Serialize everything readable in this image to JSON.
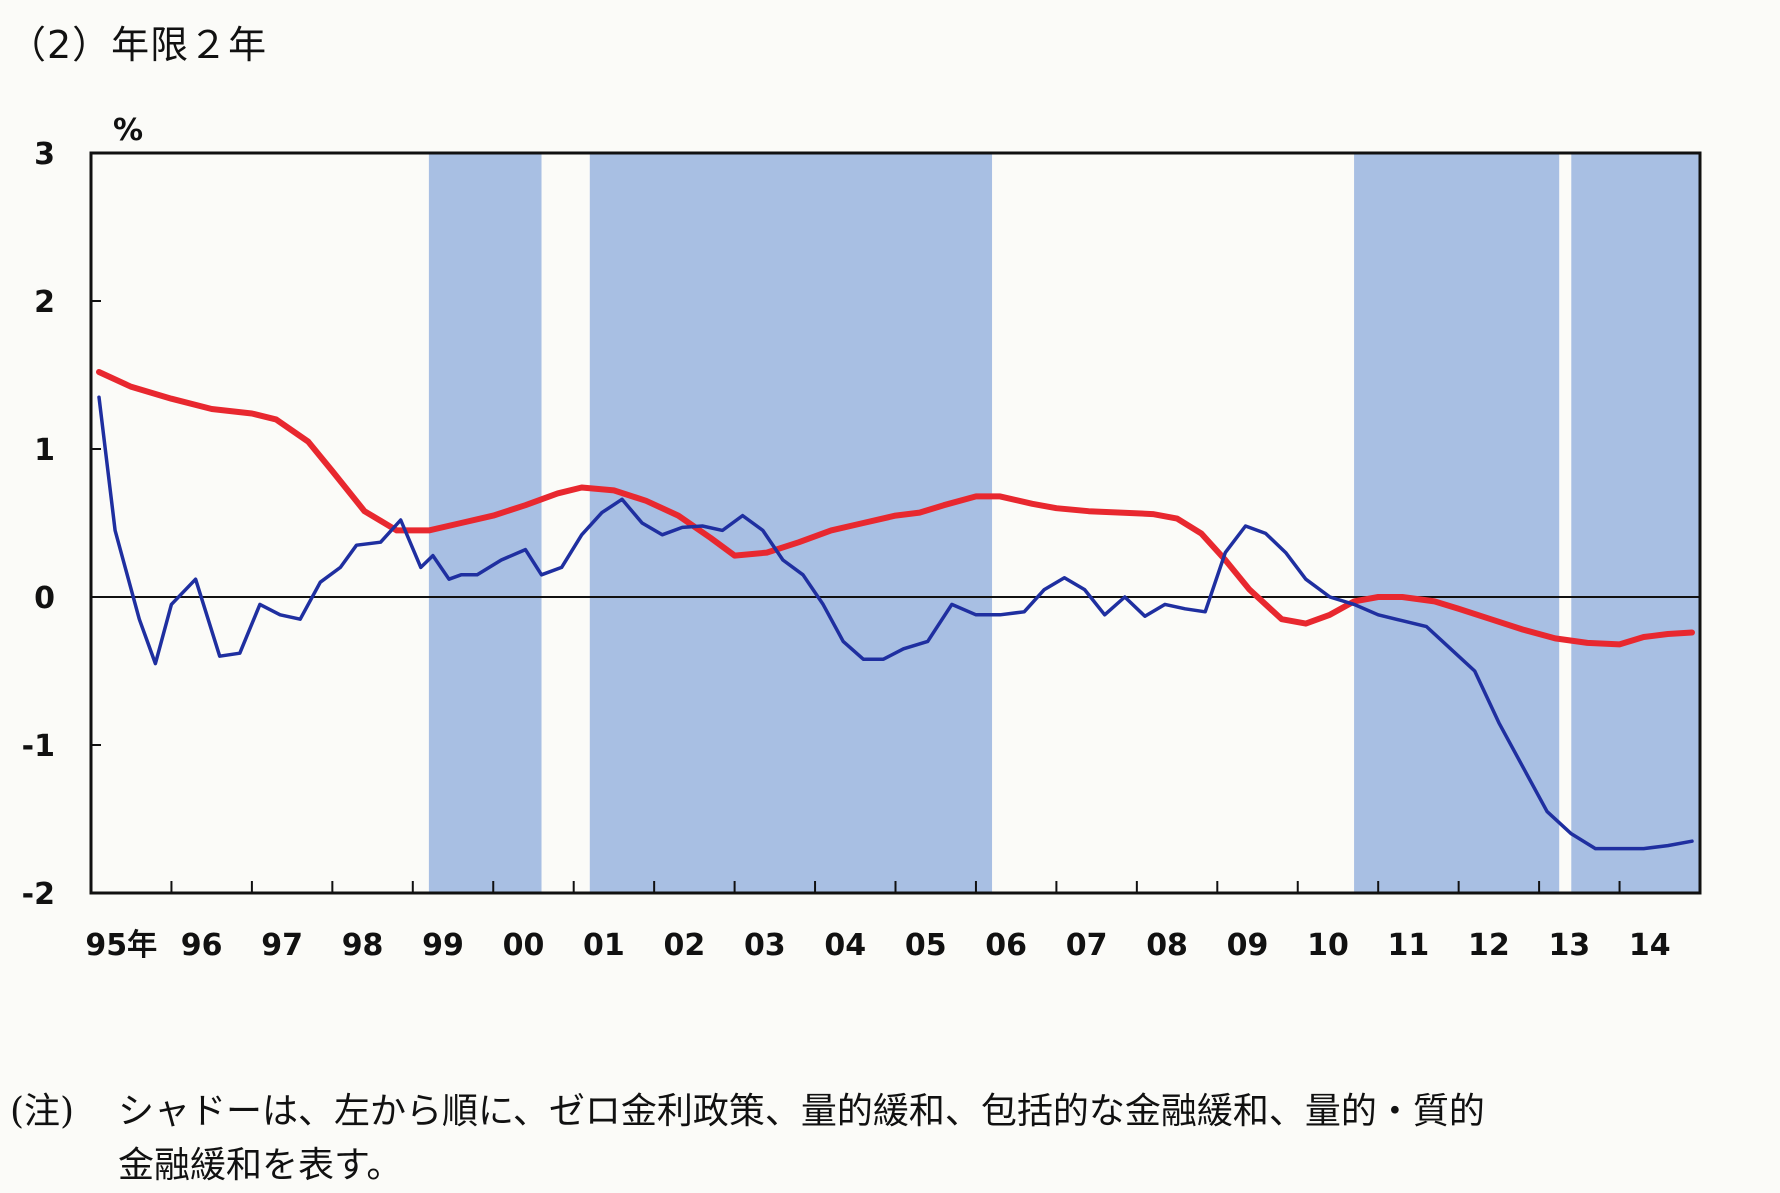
{
  "title": "（2）年限２年",
  "note": {
    "label": "(注)",
    "line1": "シャドーは、左から順に、ゼロ金利政策、量的緩和、包括的な金融緩和、量的・質的",
    "line2": "金融緩和を表す。"
  },
  "colors": {
    "shade": "#a8bfe3",
    "red_series": "#e8282f",
    "blue_series": "#1f2fa0",
    "zero_line": "#111111"
  },
  "chart_data": {
    "type": "line",
    "y_unit": "%",
    "ylim": [
      -2,
      3
    ],
    "yticks": [
      3,
      2,
      1,
      0,
      -1,
      -2
    ],
    "xlim": [
      1995,
      2015
    ],
    "xtick_labels": [
      "95年",
      "96",
      "97",
      "98",
      "99",
      "00",
      "01",
      "02",
      "03",
      "04",
      "05",
      "06",
      "07",
      "08",
      "09",
      "10",
      "11",
      "12",
      "13",
      "14"
    ],
    "shaded_periods": [
      [
        1999.2,
        2000.6
      ],
      [
        2001.2,
        2006.2
      ],
      [
        2010.7,
        2013.25
      ],
      [
        2013.4,
        2015.0
      ]
    ],
    "series": [
      {
        "color": "red",
        "x": [
          1995.1,
          1995.5,
          1996.0,
          1996.5,
          1997.0,
          1997.3,
          1997.7,
          1998.0,
          1998.4,
          1998.8,
          1999.2,
          1999.6,
          2000.0,
          2000.4,
          2000.8,
          2001.1,
          2001.5,
          2001.9,
          2002.3,
          2002.7,
          2003.0,
          2003.4,
          2003.8,
          2004.2,
          2004.6,
          2005.0,
          2005.3,
          2005.6,
          2006.0,
          2006.3,
          2006.7,
          2007.0,
          2007.4,
          2007.8,
          2008.2,
          2008.5,
          2008.8,
          2009.1,
          2009.4,
          2009.8,
          2010.1,
          2010.4,
          2010.7,
          2011.0,
          2011.3,
          2011.7,
          2012.0,
          2012.4,
          2012.8,
          2013.2,
          2013.6,
          2014.0,
          2014.3,
          2014.6,
          2014.9
        ],
        "y": [
          1.52,
          1.42,
          1.34,
          1.27,
          1.24,
          1.2,
          1.05,
          0.85,
          0.58,
          0.45,
          0.45,
          0.5,
          0.55,
          0.62,
          0.7,
          0.74,
          0.72,
          0.65,
          0.55,
          0.4,
          0.28,
          0.3,
          0.37,
          0.45,
          0.5,
          0.55,
          0.57,
          0.62,
          0.68,
          0.68,
          0.63,
          0.6,
          0.58,
          0.57,
          0.56,
          0.53,
          0.43,
          0.25,
          0.05,
          -0.15,
          -0.18,
          -0.12,
          -0.03,
          0.0,
          0.0,
          -0.03,
          -0.08,
          -0.15,
          -0.22,
          -0.28,
          -0.31,
          -0.32,
          -0.27,
          -0.25,
          -0.24
        ]
      },
      {
        "color": "blue",
        "x": [
          1995.1,
          1995.3,
          1995.6,
          1995.8,
          1996.0,
          1996.3,
          1996.6,
          1996.85,
          1997.1,
          1997.35,
          1997.6,
          1997.85,
          1998.1,
          1998.3,
          1998.6,
          1998.85,
          1999.1,
          1999.25,
          1999.45,
          1999.6,
          1999.8,
          2000.1,
          2000.4,
          2000.6,
          2000.85,
          2001.1,
          2001.35,
          2001.6,
          2001.85,
          2002.1,
          2002.35,
          2002.6,
          2002.85,
          2003.1,
          2003.35,
          2003.6,
          2003.85,
          2004.1,
          2004.35,
          2004.6,
          2004.85,
          2005.1,
          2005.4,
          2005.7,
          2006.0,
          2006.3,
          2006.6,
          2006.85,
          2007.1,
          2007.35,
          2007.6,
          2007.85,
          2008.1,
          2008.35,
          2008.6,
          2008.85,
          2009.1,
          2009.35,
          2009.6,
          2009.85,
          2010.1,
          2010.4,
          2010.7,
          2011.0,
          2011.3,
          2011.6,
          2011.9,
          2012.2,
          2012.5,
          2012.8,
          2013.1,
          2013.4,
          2013.7,
          2014.0,
          2014.3,
          2014.6,
          2014.9
        ],
        "y": [
          1.35,
          0.45,
          -0.15,
          -0.45,
          -0.05,
          0.12,
          -0.4,
          -0.38,
          -0.05,
          -0.12,
          -0.15,
          0.1,
          0.2,
          0.35,
          0.37,
          0.52,
          0.2,
          0.28,
          0.12,
          0.15,
          0.15,
          0.25,
          0.32,
          0.15,
          0.2,
          0.42,
          0.57,
          0.66,
          0.5,
          0.42,
          0.47,
          0.48,
          0.45,
          0.55,
          0.45,
          0.25,
          0.15,
          -0.05,
          -0.3,
          -0.42,
          -0.42,
          -0.35,
          -0.3,
          -0.05,
          -0.12,
          -0.12,
          -0.1,
          0.05,
          0.13,
          0.05,
          -0.12,
          0.0,
          -0.13,
          -0.05,
          -0.08,
          -0.1,
          0.3,
          0.48,
          0.43,
          0.3,
          0.12,
          0.0,
          -0.05,
          -0.12,
          -0.16,
          -0.2,
          -0.35,
          -0.5,
          -0.85,
          -1.15,
          -1.45,
          -1.6,
          -1.7,
          -1.7,
          -1.7,
          -1.68,
          -1.65
        ]
      }
    ]
  }
}
